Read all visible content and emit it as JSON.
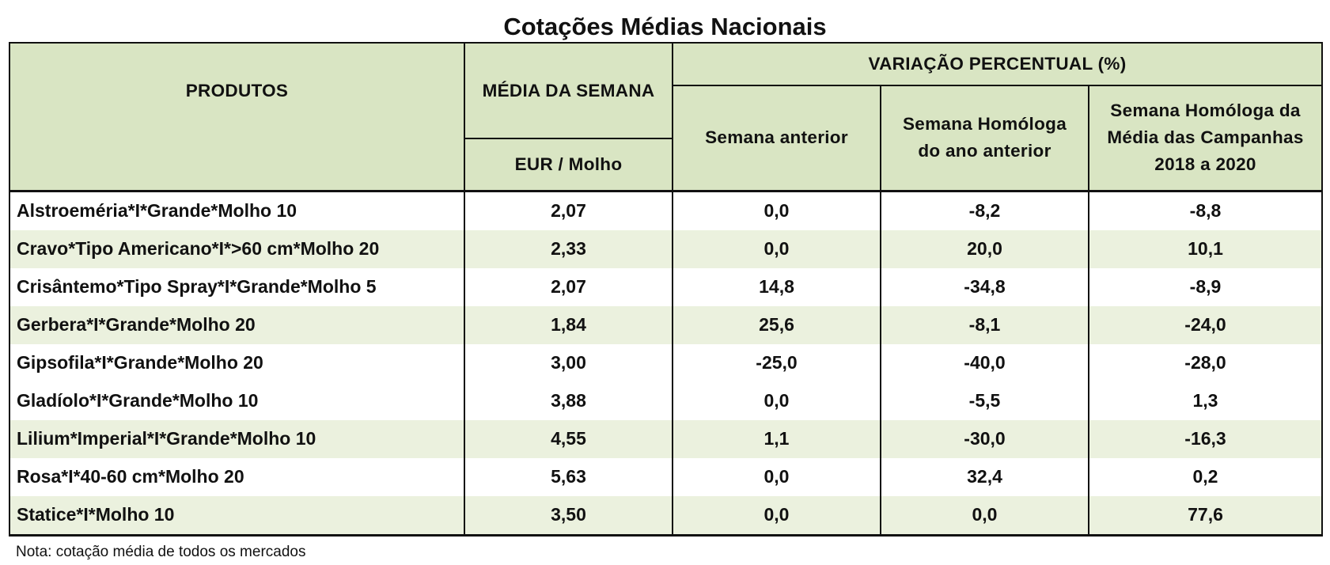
{
  "title": "Cotações Médias Nacionais",
  "headers": {
    "produtos": "PRODUTOS",
    "media_semana": "MÉDIA DA SEMANA",
    "unidade": "EUR / Molho",
    "variacao": "VARIAÇÃO PERCENTUAL (%)",
    "semana_anterior": "Semana anterior",
    "semana_homologa": "Semana Homóloga do ano anterior",
    "semana_homologa_media": "Semana Homóloga da Média das Campanhas 2018 a 2020"
  },
  "rows": [
    {
      "produto": "Alstroeméria*I*Grande*Molho 10",
      "media": "2,07",
      "sem_ant": "0,0",
      "sem_hom": "-8,2",
      "sem_hom_media": "-8,8"
    },
    {
      "produto": "Cravo*Tipo Americano*I*>60 cm*Molho 20",
      "media": "2,33",
      "sem_ant": "0,0",
      "sem_hom": "20,0",
      "sem_hom_media": "10,1"
    },
    {
      "produto": "Crisântemo*Tipo Spray*I*Grande*Molho 5",
      "media": "2,07",
      "sem_ant": "14,8",
      "sem_hom": "-34,8",
      "sem_hom_media": "-8,9"
    },
    {
      "produto": "Gerbera*I*Grande*Molho 20",
      "media": "1,84",
      "sem_ant": "25,6",
      "sem_hom": "-8,1",
      "sem_hom_media": "-24,0"
    },
    {
      "produto": "Gipsofila*I*Grande*Molho 20",
      "media": "3,00",
      "sem_ant": "-25,0",
      "sem_hom": "-40,0",
      "sem_hom_media": "-28,0"
    },
    {
      "produto": "Gladíolo*I*Grande*Molho 10",
      "media": "3,88",
      "sem_ant": "0,0",
      "sem_hom": "-5,5",
      "sem_hom_media": "1,3"
    },
    {
      "produto": "Lilium*Imperial*I*Grande*Molho 10",
      "media": "4,55",
      "sem_ant": "1,1",
      "sem_hom": "-30,0",
      "sem_hom_media": "-16,3"
    },
    {
      "produto": "Rosa*I*40-60 cm*Molho 20",
      "media": "5,63",
      "sem_ant": "0,0",
      "sem_hom": "32,4",
      "sem_hom_media": "0,2"
    },
    {
      "produto": "Statice*I*Molho 10",
      "media": "3,50",
      "sem_ant": "0,0",
      "sem_hom": "0,0",
      "sem_hom_media": "77,6"
    }
  ],
  "note": "Nota: cotação média de todos os mercados"
}
